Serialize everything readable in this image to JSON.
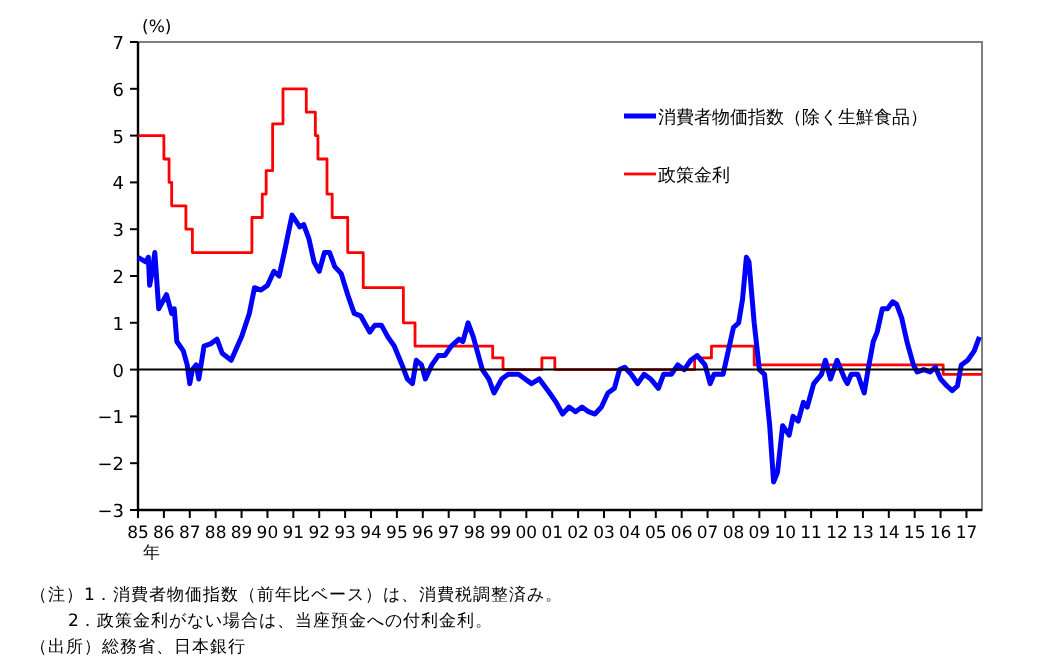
{
  "chart_data": {
    "type": "line",
    "ylabel": "(%)",
    "xlabel": "年",
    "xlim": [
      1985,
      2017.6
    ],
    "xticks": [
      {
        "value": 1985,
        "label": "85"
      },
      {
        "value": 1986,
        "label": "86"
      },
      {
        "value": 1987,
        "label": "87"
      },
      {
        "value": 1988,
        "label": "88"
      },
      {
        "value": 1989,
        "label": "89"
      },
      {
        "value": 1990,
        "label": "90"
      },
      {
        "value": 1991,
        "label": "91"
      },
      {
        "value": 1992,
        "label": "92"
      },
      {
        "value": 1993,
        "label": "93"
      },
      {
        "value": 1994,
        "label": "94"
      },
      {
        "value": 1995,
        "label": "95"
      },
      {
        "value": 1996,
        "label": "96"
      },
      {
        "value": 1997,
        "label": "97"
      },
      {
        "value": 1998,
        "label": "98"
      },
      {
        "value": 1999,
        "label": "99"
      },
      {
        "value": 2000,
        "label": "00"
      },
      {
        "value": 2001,
        "label": "01"
      },
      {
        "value": 2002,
        "label": "02"
      },
      {
        "value": 2003,
        "label": "03"
      },
      {
        "value": 2004,
        "label": "04"
      },
      {
        "value": 2005,
        "label": "05"
      },
      {
        "value": 2006,
        "label": "06"
      },
      {
        "value": 2007,
        "label": "07"
      },
      {
        "value": 2008,
        "label": "08"
      },
      {
        "value": 2009,
        "label": "09"
      },
      {
        "value": 2010,
        "label": "10"
      },
      {
        "value": 2011,
        "label": "11"
      },
      {
        "value": 2012,
        "label": "12"
      },
      {
        "value": 2013,
        "label": "13"
      },
      {
        "value": 2014,
        "label": "14"
      },
      {
        "value": 2015,
        "label": "15"
      },
      {
        "value": 2016,
        "label": "16"
      },
      {
        "value": 2017,
        "label": "17"
      }
    ],
    "ylim": [
      -3,
      7
    ],
    "yticks": [
      -3,
      -2,
      -1,
      0,
      1,
      2,
      3,
      4,
      5,
      6,
      7
    ],
    "legend": "top right",
    "grid": false,
    "ref_lines": [
      {
        "axis": "y",
        "value": 0,
        "color": "#000000"
      }
    ],
    "series": [
      {
        "name": "消費者物価指数（除く生鮮食品）",
        "type": "line",
        "color": "#0000ff",
        "x": [
          1985.0,
          1985.3,
          1985.4,
          1985.45,
          1985.55,
          1985.65,
          1985.8,
          1986.0,
          1986.1,
          1986.3,
          1986.4,
          1986.5,
          1986.75,
          1986.9,
          1987.0,
          1987.1,
          1987.25,
          1987.35,
          1987.55,
          1987.8,
          1988.05,
          1988.25,
          1988.6,
          1989.0,
          1989.3,
          1989.5,
          1989.75,
          1990.0,
          1990.25,
          1990.45,
          1990.65,
          1990.8,
          1990.95,
          1991.25,
          1991.4,
          1991.6,
          1991.8,
          1992.0,
          1992.2,
          1992.4,
          1992.6,
          1992.85,
          1993.1,
          1993.35,
          1993.6,
          1993.95,
          1994.15,
          1994.4,
          1994.65,
          1994.9,
          1995.2,
          1995.4,
          1995.6,
          1995.75,
          1995.95,
          1996.1,
          1996.35,
          1996.6,
          1996.85,
          1997.1,
          1997.4,
          1997.55,
          1997.75,
          1997.95,
          1998.3,
          1998.55,
          1998.75,
          1999.05,
          1999.3,
          1999.7,
          1999.95,
          2000.2,
          2000.5,
          2000.9,
          2001.15,
          2001.4,
          2001.65,
          2001.9,
          2002.15,
          2002.4,
          2002.65,
          2002.9,
          2003.15,
          2003.4,
          2003.6,
          2003.8,
          2004.05,
          2004.3,
          2004.55,
          2004.8,
          2005.1,
          2005.3,
          2005.6,
          2005.85,
          2006.1,
          2006.35,
          2006.6,
          2006.9,
          2007.1,
          2007.25,
          2007.6,
          2007.8,
          2008.0,
          2008.2,
          2008.35,
          2008.5,
          2008.6,
          2008.8,
          2009.0,
          2009.2,
          2009.4,
          2009.55,
          2009.7,
          2009.9,
          2010.15,
          2010.3,
          2010.5,
          2010.7,
          2010.85,
          2011.1,
          2011.4,
          2011.55,
          2011.75,
          2012.0,
          2012.3,
          2012.4,
          2012.55,
          2012.8,
          2013.05,
          2013.2,
          2013.4,
          2013.55,
          2013.75,
          2013.95,
          2014.15,
          2014.3,
          2014.5,
          2014.7,
          2014.95,
          2015.1,
          2015.35,
          2015.6,
          2015.8,
          2016.0,
          2016.25,
          2016.45,
          2016.65,
          2016.8,
          2017.05,
          2017.3,
          2017.5
        ],
        "values": [
          2.4,
          2.3,
          2.4,
          1.8,
          2.1,
          2.5,
          1.3,
          1.5,
          1.6,
          1.2,
          1.3,
          0.6,
          0.4,
          0.1,
          -0.3,
          0.0,
          0.1,
          -0.2,
          0.5,
          0.55,
          0.65,
          0.35,
          0.2,
          0.7,
          1.2,
          1.75,
          1.7,
          1.8,
          2.1,
          2.0,
          2.5,
          2.9,
          3.3,
          3.05,
          3.1,
          2.8,
          2.3,
          2.1,
          2.5,
          2.5,
          2.2,
          2.05,
          1.6,
          1.2,
          1.15,
          0.8,
          0.95,
          0.95,
          0.7,
          0.5,
          0.1,
          -0.2,
          -0.3,
          0.2,
          0.1,
          -0.2,
          0.1,
          0.3,
          0.3,
          0.5,
          0.65,
          0.6,
          1.0,
          0.7,
          0.0,
          -0.2,
          -0.5,
          -0.2,
          -0.1,
          -0.1,
          -0.2,
          -0.3,
          -0.2,
          -0.5,
          -0.7,
          -0.95,
          -0.8,
          -0.9,
          -0.8,
          -0.9,
          -0.95,
          -0.8,
          -0.5,
          -0.4,
          0.0,
          0.05,
          -0.1,
          -0.3,
          -0.1,
          -0.2,
          -0.4,
          -0.1,
          -0.1,
          0.1,
          0.0,
          0.2,
          0.3,
          0.1,
          -0.3,
          -0.1,
          -0.1,
          0.4,
          0.9,
          1.0,
          1.5,
          2.4,
          2.3,
          1.0,
          0.0,
          -0.1,
          -1.2,
          -2.4,
          -2.2,
          -1.2,
          -1.4,
          -1.0,
          -1.1,
          -0.7,
          -0.8,
          -0.3,
          -0.1,
          0.2,
          -0.2,
          0.2,
          -0.2,
          -0.3,
          -0.1,
          -0.1,
          -0.5,
          0.0,
          0.6,
          0.8,
          1.3,
          1.3,
          1.45,
          1.4,
          1.1,
          0.6,
          0.1,
          -0.05,
          0.0,
          -0.05,
          0.05,
          -0.2,
          -0.35,
          -0.45,
          -0.35,
          0.1,
          0.2,
          0.4,
          0.7
        ]
      },
      {
        "name": "政策金利",
        "type": "step",
        "color": "#ff0000",
        "x": [
          1985.0,
          1986.0,
          1986.2,
          1986.3,
          1986.85,
          1987.1,
          1989.4,
          1989.8,
          1989.95,
          1990.2,
          1990.6,
          1991.5,
          1991.85,
          1991.95,
          1992.3,
          1992.5,
          1993.1,
          1993.7,
          1995.25,
          1995.7,
          1998.7,
          1999.1,
          2000.6,
          2001.1,
          2006.5,
          2007.15,
          2008.8,
          2016.1,
          2017.6
        ],
        "values": [
          5,
          4.5,
          4.0,
          3.5,
          3.0,
          2.5,
          3.25,
          3.75,
          4.25,
          5.25,
          6.0,
          5.5,
          5.0,
          4.5,
          3.75,
          3.25,
          2.5,
          1.75,
          1.0,
          0.5,
          0.25,
          0.0,
          0.25,
          0.0,
          0.25,
          0.5,
          0.1,
          -0.1,
          -0.1
        ]
      }
    ],
    "annotations": [
      "（注）1．消費者物価指数（前年比ベース）は、消費税調整済み。",
      "2．政策金利がない場合は、当座預金への付利金利。",
      "（出所）総務省、日本銀行"
    ]
  }
}
